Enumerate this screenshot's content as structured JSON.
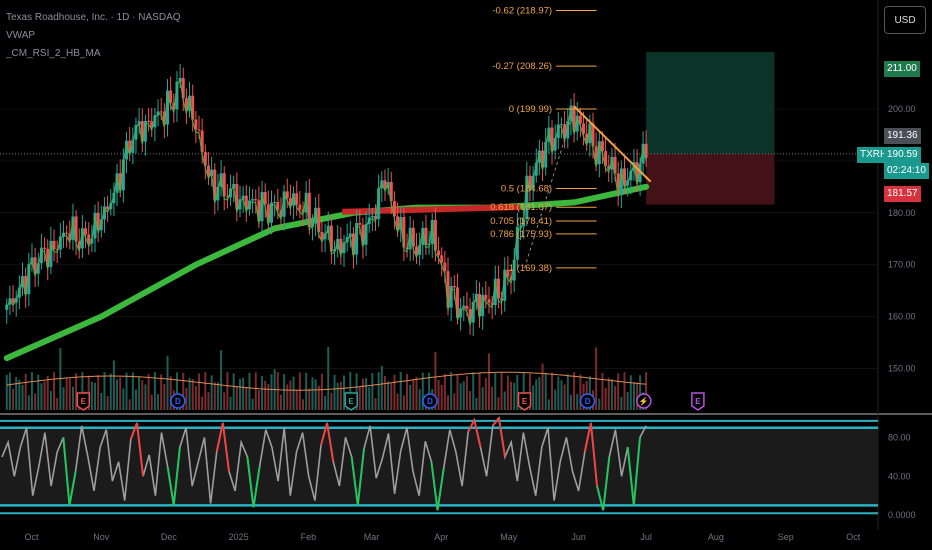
{
  "header": {
    "title": "Texas Roadhouse, Inc. · 1D · NASDAQ",
    "indicator1": "VWAP",
    "indicator2": "_CM_RSI_2_HB_MA"
  },
  "currency_button": "USD",
  "price_tags": {
    "target": "211.00",
    "high": "191.36",
    "symbol": "TXRH",
    "last": "190.59",
    "countdown": "02:24:10",
    "stop": "181.57"
  },
  "colors": {
    "up": "#26a69a",
    "down": "#ef5350",
    "fib": "#f0a340",
    "ma_green": "#3cb83c",
    "ma_red": "#c62828",
    "oscillator": "#9e9e9e",
    "band": "#2ab3c4",
    "target_zone": "#0c3c31",
    "stop_zone": "#4a1418"
  },
  "chart_data": [
    {
      "type": "candlestick",
      "symbol": "TXRH",
      "exchange": "NASDAQ",
      "interval": "1D",
      "x_ticks": [
        "Oct",
        "Nov",
        "Dec",
        "2025",
        "Feb",
        "Mar",
        "Apr",
        "May",
        "Jun",
        "Jul",
        "Aug",
        "Sep",
        "Oct"
      ],
      "y_ticks": [
        150.0,
        160.0,
        170.0,
        180.0,
        190.0,
        200.0
      ],
      "ylim": [
        142,
        221
      ],
      "close_series": [
        {
          "date": "2024-09-20",
          "close": 161
        },
        {
          "date": "2024-09-27",
          "close": 167
        },
        {
          "date": "2024-10-04",
          "close": 171
        },
        {
          "date": "2024-10-11",
          "close": 174
        },
        {
          "date": "2024-10-18",
          "close": 176
        },
        {
          "date": "2024-10-25",
          "close": 175
        },
        {
          "date": "2024-11-01",
          "close": 178
        },
        {
          "date": "2024-11-08",
          "close": 186
        },
        {
          "date": "2024-11-15",
          "close": 195
        },
        {
          "date": "2024-11-22",
          "close": 198
        },
        {
          "date": "2024-11-29",
          "close": 199
        },
        {
          "date": "2024-12-06",
          "close": 205
        },
        {
          "date": "2024-12-13",
          "close": 196
        },
        {
          "date": "2024-12-20",
          "close": 186
        },
        {
          "date": "2024-12-27",
          "close": 184
        },
        {
          "date": "2025-01-03",
          "close": 183
        },
        {
          "date": "2025-01-10",
          "close": 181
        },
        {
          "date": "2025-01-17",
          "close": 181
        },
        {
          "date": "2025-01-24",
          "close": 182
        },
        {
          "date": "2025-01-31",
          "close": 181
        },
        {
          "date": "2025-02-07",
          "close": 176
        },
        {
          "date": "2025-02-14",
          "close": 174
        },
        {
          "date": "2025-02-21",
          "close": 175
        },
        {
          "date": "2025-02-28",
          "close": 178
        },
        {
          "date": "2025-03-07",
          "close": 186
        },
        {
          "date": "2025-03-14",
          "close": 176
        },
        {
          "date": "2025-03-21",
          "close": 173
        },
        {
          "date": "2025-03-28",
          "close": 177
        },
        {
          "date": "2025-04-04",
          "close": 165
        },
        {
          "date": "2025-04-11",
          "close": 161
        },
        {
          "date": "2025-04-18",
          "close": 162
        },
        {
          "date": "2025-04-25",
          "close": 164
        },
        {
          "date": "2025-05-02",
          "close": 168
        },
        {
          "date": "2025-05-09",
          "close": 185
        },
        {
          "date": "2025-05-16",
          "close": 192
        },
        {
          "date": "2025-05-23",
          "close": 196
        },
        {
          "date": "2025-05-30",
          "close": 198
        },
        {
          "date": "2025-06-06",
          "close": 194
        },
        {
          "date": "2025-06-13",
          "close": 190
        },
        {
          "date": "2025-06-20",
          "close": 186
        },
        {
          "date": "2025-06-27",
          "close": 189
        },
        {
          "date": "2025-07-01",
          "close": 190.59
        }
      ],
      "moving_average": [
        {
          "date": "2024-09-20",
          "value": 152
        },
        {
          "date": "2024-11-01",
          "value": 160
        },
        {
          "date": "2024-12-13",
          "value": 170
        },
        {
          "date": "2025-01-17",
          "value": 177
        },
        {
          "date": "2025-02-21",
          "value": 180
        },
        {
          "date": "2025-03-21",
          "value": 181
        },
        {
          "date": "2025-04-25",
          "value": 181
        },
        {
          "date": "2025-05-30",
          "value": 182
        },
        {
          "date": "2025-07-01",
          "value": 185
        }
      ],
      "fibonacci": [
        {
          "label": "-0.62 (218.97)",
          "price": 218.97
        },
        {
          "label": "-0.27 (208.26)",
          "price": 208.26
        },
        {
          "label": "0 (199.99)",
          "price": 199.99
        },
        {
          "label": "0.5 (184.68)",
          "price": 184.68
        },
        {
          "label": "0.618 (181.07)",
          "price": 181.07
        },
        {
          "label": "0.705 (178.41)",
          "price": 178.41
        },
        {
          "label": "0.786 (175.93)",
          "price": 175.93
        },
        {
          "label": "1 (169.38)",
          "price": 169.38
        }
      ],
      "position": {
        "entry": 191.36,
        "target": 211.0,
        "stop": 181.57
      },
      "last_price": 190.59,
      "events": [
        {
          "letter": "E",
          "date": "2024-10-24",
          "color": "#ef5350"
        },
        {
          "letter": "D",
          "date": "2024-12-05",
          "color": "#2962ff"
        },
        {
          "letter": "E",
          "date": "2025-02-20",
          "color": "#26a69a"
        },
        {
          "letter": "D",
          "date": "2025-03-27",
          "color": "#2962ff"
        },
        {
          "letter": "E",
          "date": "2025-05-08",
          "color": "#ef5350"
        },
        {
          "letter": "D",
          "date": "2025-06-05",
          "color": "#2962ff"
        },
        {
          "letter": "⚡",
          "date": "2025-06-30",
          "color": "#b455e0"
        },
        {
          "letter": "E",
          "date": "2025-07-24",
          "color": "#b455e0"
        }
      ]
    },
    {
      "type": "line",
      "name": "_CM_RSI_2_HB_MA",
      "y_ticks": [
        0.0,
        40.0,
        80.0
      ],
      "ylim": [
        -5,
        100
      ],
      "bands": [
        90,
        10
      ],
      "values": [
        60,
        75,
        40,
        70,
        90,
        20,
        50,
        85,
        30,
        65,
        80,
        10,
        45,
        92,
        60,
        25,
        70,
        88,
        35,
        55,
        15,
        78,
        95,
        40,
        62,
        20,
        85,
        50,
        10,
        70,
        90,
        30,
        55,
        80,
        12,
        65,
        95,
        45,
        25,
        75,
        60,
        8,
        50,
        88,
        70,
        35,
        90,
        20,
        65,
        85,
        40,
        15,
        72,
        95,
        55,
        30,
        80,
        60,
        10,
        68,
        92,
        38,
        58,
        84,
        22,
        66,
        90,
        45,
        20,
        76,
        55,
        5,
        48,
        88,
        65,
        30,
        86,
        98,
        70,
        40,
        92,
        100,
        60,
        75,
        35,
        85,
        50,
        20,
        70,
        90,
        15,
        55,
        80,
        45,
        25,
        65,
        95,
        30,
        5,
        60,
        88,
        40,
        70,
        10,
        80,
        92
      ]
    }
  ]
}
